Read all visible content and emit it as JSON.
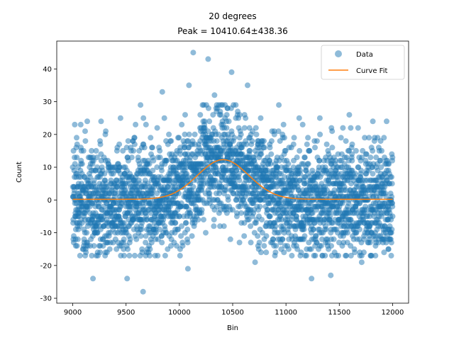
{
  "chart_data": {
    "type": "scatter",
    "title_line1": "20 degrees",
    "title_line2": "Peak = 10410.64±438.36",
    "xlabel": "Bin",
    "ylabel": "Count",
    "xlim": [
      8850,
      12150
    ],
    "ylim": [
      -31.5,
      48.5
    ],
    "xticks": [
      9000,
      9500,
      10000,
      10500,
      11000,
      11500,
      12000
    ],
    "yticks": [
      -30,
      -20,
      -10,
      0,
      10,
      20,
      30,
      40
    ],
    "grid": false,
    "legend": {
      "placement": "top-right",
      "entries": [
        {
          "name": "Data",
          "kind": "marker"
        },
        {
          "name": "Curve Fit",
          "kind": "line"
        }
      ]
    },
    "colors": {
      "data": "#1f77b4",
      "fit": "#ff7f0e"
    },
    "data_series": {
      "name": "Data",
      "x_range": [
        9000,
        12000
      ],
      "sample_points": [
        {
          "x": 10130,
          "y": 45
        },
        {
          "x": 10270,
          "y": 43
        },
        {
          "x": 10490,
          "y": 39
        },
        {
          "x": 9840,
          "y": 33
        },
        {
          "x": 10330,
          "y": 32
        },
        {
          "x": 10090,
          "y": 35
        },
        {
          "x": 10640,
          "y": 35
        },
        {
          "x": 9660,
          "y": -28
        },
        {
          "x": 9190,
          "y": -24
        },
        {
          "x": 9510,
          "y": -24
        },
        {
          "x": 11240,
          "y": -24
        },
        {
          "x": 11420,
          "y": -23
        },
        {
          "x": 10080,
          "y": -21
        },
        {
          "x": 10710,
          "y": -19
        },
        {
          "x": 11710,
          "y": -19
        },
        {
          "x": 11960,
          "y": -15
        }
      ]
    },
    "fit_series": {
      "name": "Curve Fit",
      "model": "gaussian",
      "center": 10410.64,
      "amplitude": 12.1,
      "sigma": 240,
      "baseline": 0.2
    }
  }
}
